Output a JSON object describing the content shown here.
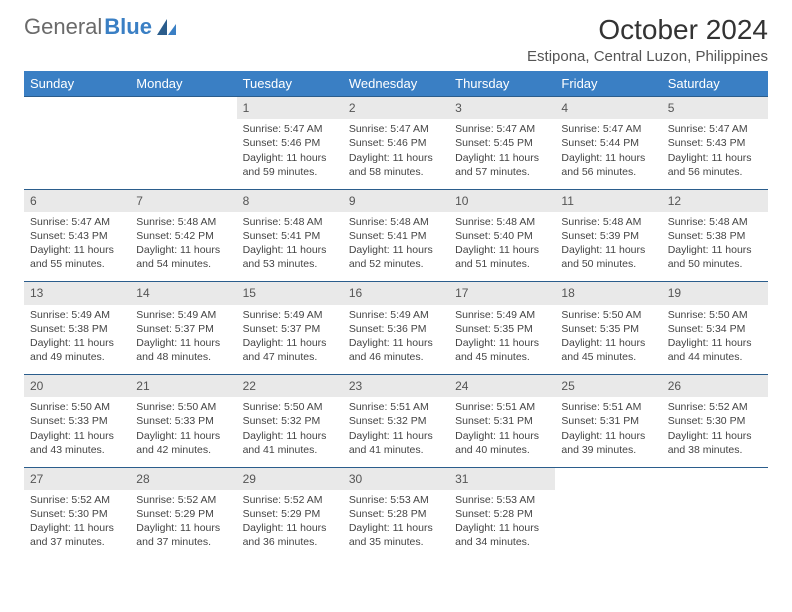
{
  "brand": {
    "part1": "General",
    "part2": "Blue"
  },
  "title": "October 2024",
  "location": "Estipona, Central Luzon, Philippines",
  "header_bg": "#3a7fc4",
  "border_color": "#2b5d8c",
  "daynum_bg": "#e9e9e9",
  "weekdays": [
    "Sunday",
    "Monday",
    "Tuesday",
    "Wednesday",
    "Thursday",
    "Friday",
    "Saturday"
  ],
  "weeks": [
    [
      null,
      null,
      {
        "n": "1",
        "sr": "Sunrise: 5:47 AM",
        "ss": "Sunset: 5:46 PM",
        "dl": "Daylight: 11 hours and 59 minutes."
      },
      {
        "n": "2",
        "sr": "Sunrise: 5:47 AM",
        "ss": "Sunset: 5:46 PM",
        "dl": "Daylight: 11 hours and 58 minutes."
      },
      {
        "n": "3",
        "sr": "Sunrise: 5:47 AM",
        "ss": "Sunset: 5:45 PM",
        "dl": "Daylight: 11 hours and 57 minutes."
      },
      {
        "n": "4",
        "sr": "Sunrise: 5:47 AM",
        "ss": "Sunset: 5:44 PM",
        "dl": "Daylight: 11 hours and 56 minutes."
      },
      {
        "n": "5",
        "sr": "Sunrise: 5:47 AM",
        "ss": "Sunset: 5:43 PM",
        "dl": "Daylight: 11 hours and 56 minutes."
      }
    ],
    [
      {
        "n": "6",
        "sr": "Sunrise: 5:47 AM",
        "ss": "Sunset: 5:43 PM",
        "dl": "Daylight: 11 hours and 55 minutes."
      },
      {
        "n": "7",
        "sr": "Sunrise: 5:48 AM",
        "ss": "Sunset: 5:42 PM",
        "dl": "Daylight: 11 hours and 54 minutes."
      },
      {
        "n": "8",
        "sr": "Sunrise: 5:48 AM",
        "ss": "Sunset: 5:41 PM",
        "dl": "Daylight: 11 hours and 53 minutes."
      },
      {
        "n": "9",
        "sr": "Sunrise: 5:48 AM",
        "ss": "Sunset: 5:41 PM",
        "dl": "Daylight: 11 hours and 52 minutes."
      },
      {
        "n": "10",
        "sr": "Sunrise: 5:48 AM",
        "ss": "Sunset: 5:40 PM",
        "dl": "Daylight: 11 hours and 51 minutes."
      },
      {
        "n": "11",
        "sr": "Sunrise: 5:48 AM",
        "ss": "Sunset: 5:39 PM",
        "dl": "Daylight: 11 hours and 50 minutes."
      },
      {
        "n": "12",
        "sr": "Sunrise: 5:48 AM",
        "ss": "Sunset: 5:38 PM",
        "dl": "Daylight: 11 hours and 50 minutes."
      }
    ],
    [
      {
        "n": "13",
        "sr": "Sunrise: 5:49 AM",
        "ss": "Sunset: 5:38 PM",
        "dl": "Daylight: 11 hours and 49 minutes."
      },
      {
        "n": "14",
        "sr": "Sunrise: 5:49 AM",
        "ss": "Sunset: 5:37 PM",
        "dl": "Daylight: 11 hours and 48 minutes."
      },
      {
        "n": "15",
        "sr": "Sunrise: 5:49 AM",
        "ss": "Sunset: 5:37 PM",
        "dl": "Daylight: 11 hours and 47 minutes."
      },
      {
        "n": "16",
        "sr": "Sunrise: 5:49 AM",
        "ss": "Sunset: 5:36 PM",
        "dl": "Daylight: 11 hours and 46 minutes."
      },
      {
        "n": "17",
        "sr": "Sunrise: 5:49 AM",
        "ss": "Sunset: 5:35 PM",
        "dl": "Daylight: 11 hours and 45 minutes."
      },
      {
        "n": "18",
        "sr": "Sunrise: 5:50 AM",
        "ss": "Sunset: 5:35 PM",
        "dl": "Daylight: 11 hours and 45 minutes."
      },
      {
        "n": "19",
        "sr": "Sunrise: 5:50 AM",
        "ss": "Sunset: 5:34 PM",
        "dl": "Daylight: 11 hours and 44 minutes."
      }
    ],
    [
      {
        "n": "20",
        "sr": "Sunrise: 5:50 AM",
        "ss": "Sunset: 5:33 PM",
        "dl": "Daylight: 11 hours and 43 minutes."
      },
      {
        "n": "21",
        "sr": "Sunrise: 5:50 AM",
        "ss": "Sunset: 5:33 PM",
        "dl": "Daylight: 11 hours and 42 minutes."
      },
      {
        "n": "22",
        "sr": "Sunrise: 5:50 AM",
        "ss": "Sunset: 5:32 PM",
        "dl": "Daylight: 11 hours and 41 minutes."
      },
      {
        "n": "23",
        "sr": "Sunrise: 5:51 AM",
        "ss": "Sunset: 5:32 PM",
        "dl": "Daylight: 11 hours and 41 minutes."
      },
      {
        "n": "24",
        "sr": "Sunrise: 5:51 AM",
        "ss": "Sunset: 5:31 PM",
        "dl": "Daylight: 11 hours and 40 minutes."
      },
      {
        "n": "25",
        "sr": "Sunrise: 5:51 AM",
        "ss": "Sunset: 5:31 PM",
        "dl": "Daylight: 11 hours and 39 minutes."
      },
      {
        "n": "26",
        "sr": "Sunrise: 5:52 AM",
        "ss": "Sunset: 5:30 PM",
        "dl": "Daylight: 11 hours and 38 minutes."
      }
    ],
    [
      {
        "n": "27",
        "sr": "Sunrise: 5:52 AM",
        "ss": "Sunset: 5:30 PM",
        "dl": "Daylight: 11 hours and 37 minutes."
      },
      {
        "n": "28",
        "sr": "Sunrise: 5:52 AM",
        "ss": "Sunset: 5:29 PM",
        "dl": "Daylight: 11 hours and 37 minutes."
      },
      {
        "n": "29",
        "sr": "Sunrise: 5:52 AM",
        "ss": "Sunset: 5:29 PM",
        "dl": "Daylight: 11 hours and 36 minutes."
      },
      {
        "n": "30",
        "sr": "Sunrise: 5:53 AM",
        "ss": "Sunset: 5:28 PM",
        "dl": "Daylight: 11 hours and 35 minutes."
      },
      {
        "n": "31",
        "sr": "Sunrise: 5:53 AM",
        "ss": "Sunset: 5:28 PM",
        "dl": "Daylight: 11 hours and 34 minutes."
      },
      null,
      null
    ]
  ]
}
